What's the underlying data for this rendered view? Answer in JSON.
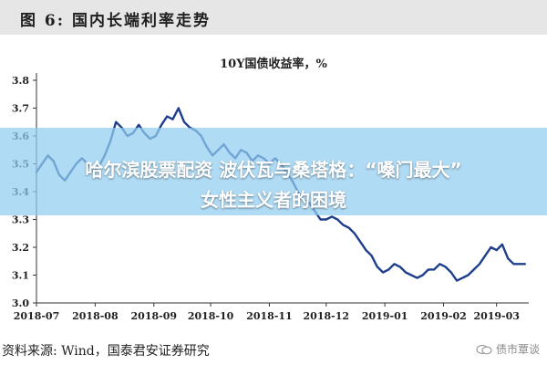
{
  "figure": {
    "label": "图 6:",
    "title": "国内长端利率走势"
  },
  "overlay": {
    "line1": "哈尔滨股票配资 波伏瓦与桑塔格：“嗓门最大”",
    "line2": "女性主义者的困境"
  },
  "footer": {
    "source": "资料来源:  Wind，国泰君安证券研究",
    "watermark": "债市覃谈"
  },
  "colors": {
    "line": "#1f3f8c",
    "header_bg": "#e6e6e6",
    "overlay_bg": "#91cdf0"
  },
  "chart_data": {
    "type": "line",
    "title": "10Y国债收益率，%",
    "xlabel": "",
    "ylabel": "",
    "ylim": [
      3.0,
      3.8
    ],
    "yticks": [
      "3.0",
      "3.1",
      "3.2",
      "3.3",
      "3.4",
      "3.5",
      "3.6",
      "3.7",
      "3.8"
    ],
    "xlim": [
      0,
      260
    ],
    "xticks": [
      {
        "label": "2018-07",
        "x": 0
      },
      {
        "label": "2018-08",
        "x": 31
      },
      {
        "label": "2018-09",
        "x": 62
      },
      {
        "label": "2018-10",
        "x": 92
      },
      {
        "label": "2018-11",
        "x": 123
      },
      {
        "label": "2018-12",
        "x": 153
      },
      {
        "label": "2019-01",
        "x": 184
      },
      {
        "label": "2019-02",
        "x": 215
      },
      {
        "label": "2019-03",
        "x": 243
      }
    ],
    "grid": false,
    "series": [
      {
        "name": "10Y国债收益率",
        "x": [
          0,
          3,
          6,
          9,
          12,
          15,
          18,
          21,
          24,
          27,
          30,
          33,
          36,
          39,
          42,
          45,
          48,
          51,
          54,
          57,
          60,
          63,
          66,
          69,
          72,
          75,
          78,
          81,
          84,
          87,
          90,
          93,
          96,
          99,
          102,
          105,
          108,
          111,
          114,
          117,
          120,
          123,
          126,
          129,
          132,
          135,
          138,
          141,
          144,
          147,
          150,
          153,
          156,
          159,
          162,
          165,
          168,
          171,
          174,
          177,
          180,
          183,
          186,
          189,
          192,
          195,
          198,
          201,
          204,
          207,
          210,
          213,
          216,
          219,
          222,
          225,
          228,
          231,
          234,
          237,
          240,
          243,
          246,
          249,
          252,
          255,
          258
        ],
        "values": [
          3.47,
          3.5,
          3.53,
          3.51,
          3.46,
          3.44,
          3.47,
          3.5,
          3.52,
          3.5,
          3.47,
          3.49,
          3.53,
          3.58,
          3.65,
          3.63,
          3.6,
          3.61,
          3.64,
          3.61,
          3.59,
          3.6,
          3.64,
          3.67,
          3.66,
          3.7,
          3.65,
          3.63,
          3.62,
          3.6,
          3.56,
          3.53,
          3.55,
          3.57,
          3.54,
          3.52,
          3.55,
          3.54,
          3.51,
          3.53,
          3.52,
          3.5,
          3.52,
          3.5,
          3.47,
          3.44,
          3.4,
          3.37,
          3.36,
          3.33,
          3.3,
          3.3,
          3.31,
          3.3,
          3.28,
          3.27,
          3.25,
          3.22,
          3.19,
          3.17,
          3.13,
          3.11,
          3.12,
          3.14,
          3.13,
          3.11,
          3.1,
          3.09,
          3.1,
          3.12,
          3.12,
          3.14,
          3.13,
          3.11,
          3.08,
          3.09,
          3.1,
          3.12,
          3.14,
          3.17,
          3.2,
          3.19,
          3.21,
          3.16,
          3.14,
          3.14,
          3.14
        ]
      }
    ]
  }
}
